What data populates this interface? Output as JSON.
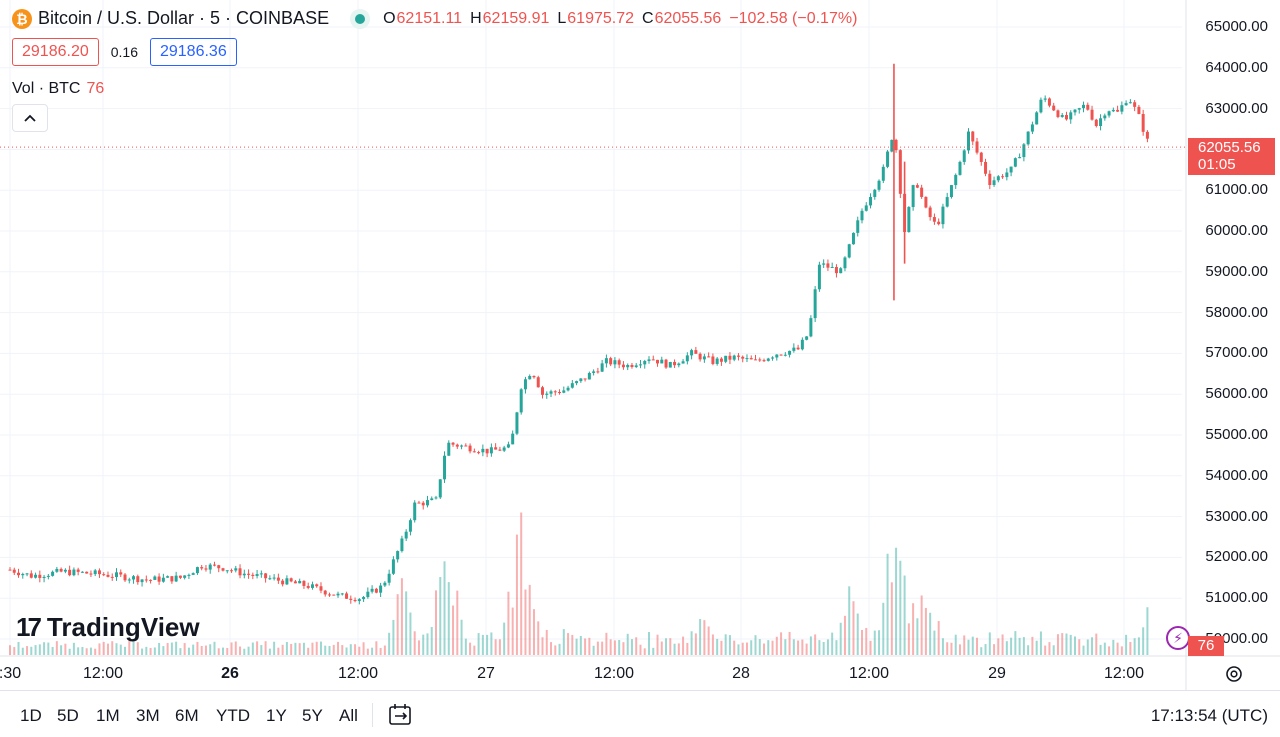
{
  "legend": {
    "symbol_icon": "bitcoin-icon",
    "title": "Bitcoin / U.S. Dollar · 5 · COINBASE",
    "ohlc": [
      {
        "key": "O",
        "value": "62151.11"
      },
      {
        "key": "H",
        "value": "62159.91"
      },
      {
        "key": "L",
        "value": "61975.72"
      },
      {
        "key": "C",
        "value": "62055.56"
      }
    ],
    "change": "−102.58 (−0.17%)"
  },
  "trade": {
    "sell": "29186.20",
    "spread": "0.16",
    "buy": "29186.36"
  },
  "volume_legend": {
    "label": "Vol · BTC",
    "value": "76"
  },
  "watermark": {
    "text": "TradingView"
  },
  "price_axis": {
    "labels": [
      "65000.00",
      "64000.00",
      "63000.00",
      "62000.00",
      "61000.00",
      "60000.00",
      "59000.00",
      "58000.00",
      "57000.00",
      "56000.00",
      "55000.00",
      "54000.00",
      "53000.00",
      "52000.00",
      "51000.00",
      "50000.00"
    ],
    "last_price": "62055.56",
    "countdown": "01:05",
    "volume_tag": "76"
  },
  "time_axis": {
    "labels": [
      {
        "text": ":30",
        "bold": false
      },
      {
        "text": "12:00",
        "bold": false
      },
      {
        "text": "26",
        "bold": true
      },
      {
        "text": "12:00",
        "bold": false
      },
      {
        "text": "27",
        "bold": false
      },
      {
        "text": "12:00",
        "bold": false
      },
      {
        "text": "28",
        "bold": false
      },
      {
        "text": "12:00",
        "bold": false
      },
      {
        "text": "29",
        "bold": false
      },
      {
        "text": "12:00",
        "bold": false
      }
    ]
  },
  "ranges": [
    "1D",
    "5D",
    "1M",
    "3M",
    "6M",
    "YTD",
    "1Y",
    "5Y",
    "All"
  ],
  "clock": "17:13:54 (UTC)",
  "colors": {
    "up": "#26a69a",
    "down": "#ef5350",
    "grid": "#f0f3fa"
  },
  "chart_data": {
    "type": "candlestick",
    "title": "Bitcoin / U.S. Dollar · 5 · COINBASE",
    "x_unit": "hours since first tick label",
    "ylim": [
      50000,
      65000
    ],
    "close_path": [
      {
        "x": 0,
        "y": 51700
      },
      {
        "x": 2,
        "y": 51550
      },
      {
        "x": 5,
        "y": 51650
      },
      {
        "x": 8,
        "y": 51600
      },
      {
        "x": 10,
        "y": 51550
      },
      {
        "x": 13,
        "y": 51450
      },
      {
        "x": 16,
        "y": 51500
      },
      {
        "x": 18,
        "y": 51800
      },
      {
        "x": 20,
        "y": 51750
      },
      {
        "x": 22,
        "y": 51600
      },
      {
        "x": 24,
        "y": 51500
      },
      {
        "x": 26,
        "y": 51400
      },
      {
        "x": 28,
        "y": 51300
      },
      {
        "x": 31,
        "y": 51050
      },
      {
        "x": 33,
        "y": 51000
      },
      {
        "x": 35,
        "y": 51300
      },
      {
        "x": 37,
        "y": 52500
      },
      {
        "x": 38,
        "y": 53300
      },
      {
        "x": 40,
        "y": 53400
      },
      {
        "x": 41,
        "y": 54800
      },
      {
        "x": 43,
        "y": 54700
      },
      {
        "x": 45,
        "y": 54600
      },
      {
        "x": 47,
        "y": 54700
      },
      {
        "x": 48,
        "y": 56200
      },
      {
        "x": 49,
        "y": 56600
      },
      {
        "x": 50,
        "y": 56000
      },
      {
        "x": 52,
        "y": 56100
      },
      {
        "x": 54,
        "y": 56400
      },
      {
        "x": 56,
        "y": 56800
      },
      {
        "x": 58,
        "y": 56700
      },
      {
        "x": 60,
        "y": 56900
      },
      {
        "x": 62,
        "y": 56700
      },
      {
        "x": 64,
        "y": 57000
      },
      {
        "x": 66,
        "y": 56800
      },
      {
        "x": 68,
        "y": 56900
      },
      {
        "x": 70,
        "y": 56800
      },
      {
        "x": 72,
        "y": 57000
      },
      {
        "x": 74,
        "y": 57100
      },
      {
        "x": 75,
        "y": 57500
      },
      {
        "x": 76,
        "y": 59200
      },
      {
        "x": 78,
        "y": 59000
      },
      {
        "x": 80,
        "y": 60500
      },
      {
        "x": 82,
        "y": 61500
      },
      {
        "x": 83,
        "y": 62500
      },
      {
        "x": 84,
        "y": 60000
      },
      {
        "x": 85,
        "y": 61300
      },
      {
        "x": 86,
        "y": 60500
      },
      {
        "x": 87,
        "y": 60100
      },
      {
        "x": 88,
        "y": 60800
      },
      {
        "x": 89,
        "y": 61500
      },
      {
        "x": 90,
        "y": 62400
      },
      {
        "x": 91,
        "y": 61800
      },
      {
        "x": 92,
        "y": 61200
      },
      {
        "x": 94,
        "y": 61500
      },
      {
        "x": 95,
        "y": 62000
      },
      {
        "x": 97,
        "y": 63300
      },
      {
        "x": 99,
        "y": 62700
      },
      {
        "x": 101,
        "y": 63100
      },
      {
        "x": 102,
        "y": 62600
      },
      {
        "x": 103,
        "y": 63000
      },
      {
        "x": 104,
        "y": 62900
      },
      {
        "x": 105,
        "y": 63300
      },
      {
        "x": 106,
        "y": 62800
      },
      {
        "x": 107,
        "y": 62055
      }
    ],
    "wicks": [
      {
        "x": 83,
        "high": 64100,
        "low": 58300
      },
      {
        "x": 84,
        "high": 61700,
        "low": 59200
      }
    ],
    "volume_peaks": [
      {
        "x": 37,
        "value": 0.55
      },
      {
        "x": 41,
        "value": 0.8
      },
      {
        "x": 48,
        "value": 1.0
      },
      {
        "x": 65,
        "value": 0.4
      },
      {
        "x": 79,
        "value": 0.55
      },
      {
        "x": 83,
        "value": 1.0
      },
      {
        "x": 84,
        "value": 0.6
      },
      {
        "x": 86,
        "value": 0.55
      },
      {
        "x": 107,
        "value": 0.35
      }
    ]
  }
}
